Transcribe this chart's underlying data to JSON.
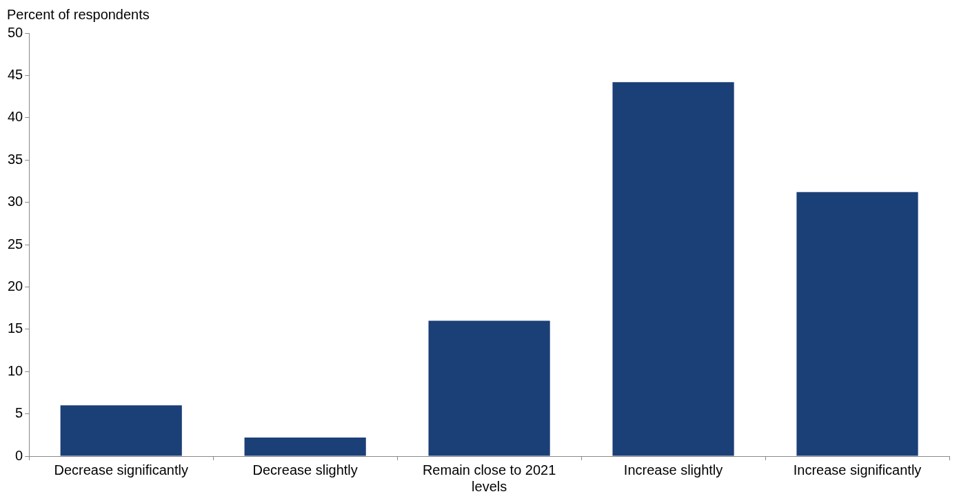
{
  "chart_data": {
    "type": "bar",
    "ylabel": "Percent of respondents",
    "categories": [
      "Decrease significantly",
      "Decrease slightly",
      "Remain close to 2021 levels",
      "Increase slightly",
      "Increase significantly"
    ],
    "values": [
      6,
      2.2,
      16,
      44.2,
      31.2
    ],
    "color": "#1b3f77",
    "ylim": [
      0,
      50
    ],
    "yticks": [
      0,
      5,
      10,
      15,
      20,
      25,
      30,
      35,
      40,
      45,
      50
    ],
    "grid": false,
    "legend": false
  }
}
